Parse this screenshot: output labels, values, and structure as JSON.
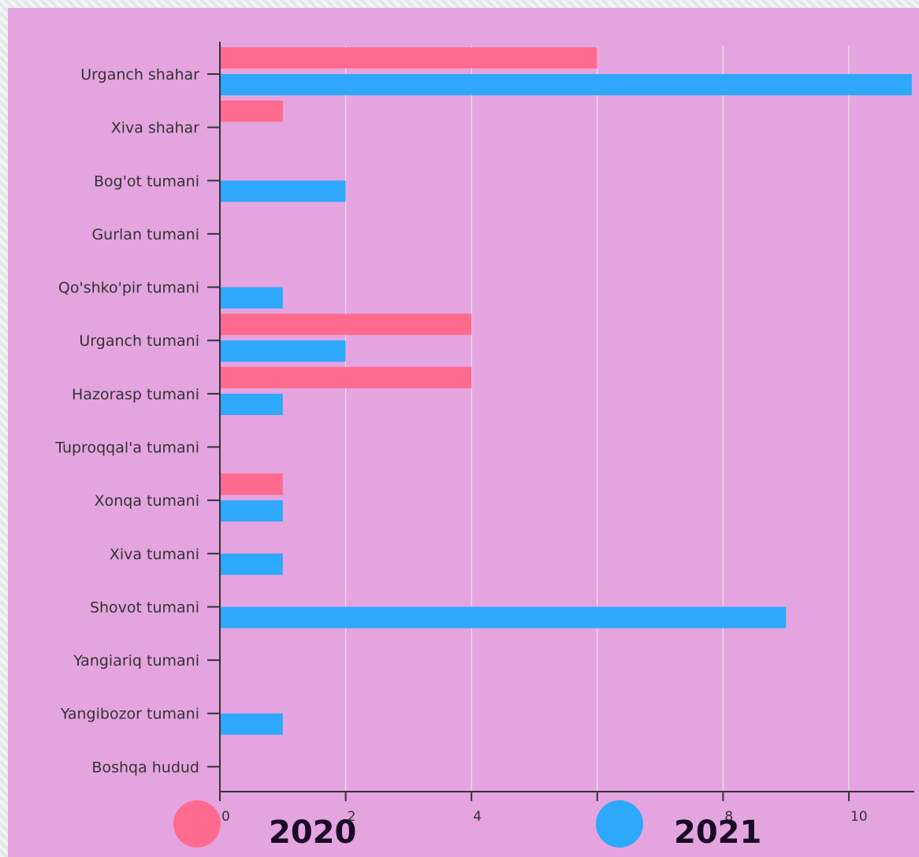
{
  "chart_data": {
    "type": "bar",
    "orientation": "horizontal",
    "categories": [
      "Urganch shahar",
      "Xiva shahar",
      "Bog'ot tumani",
      "Gurlan tumani",
      "Qo'shko'pir tumani",
      "Urganch tumani",
      "Hazorasp tumani",
      "Tuproqqal'a tumani",
      "Xonqa tumani",
      "Xiva tumani",
      "Shovot tumani",
      "Yangiariq tumani",
      "Yangibozor tumani",
      "Boshqa hudud"
    ],
    "series": [
      {
        "name": "2020",
        "color": "#ff6b8f",
        "values": [
          6,
          1,
          0,
          0,
          0,
          4,
          4,
          0,
          1,
          0,
          0,
          0,
          0,
          0
        ]
      },
      {
        "name": "2021",
        "color": "#2ea8fb",
        "values": [
          11,
          0,
          2,
          0,
          1,
          2,
          1,
          0,
          1,
          1,
          9,
          0,
          1,
          0
        ]
      }
    ],
    "xticks": [
      "0",
      "2",
      "4",
      "6",
      "8",
      "10"
    ],
    "xlim": [
      0,
      11
    ],
    "grid": true,
    "legend_position": "bottom",
    "title": "",
    "xlabel": "",
    "ylabel": ""
  },
  "colors": {
    "background": "#e4a4df",
    "grid": "#f5ecf5",
    "axis": "#333333"
  }
}
